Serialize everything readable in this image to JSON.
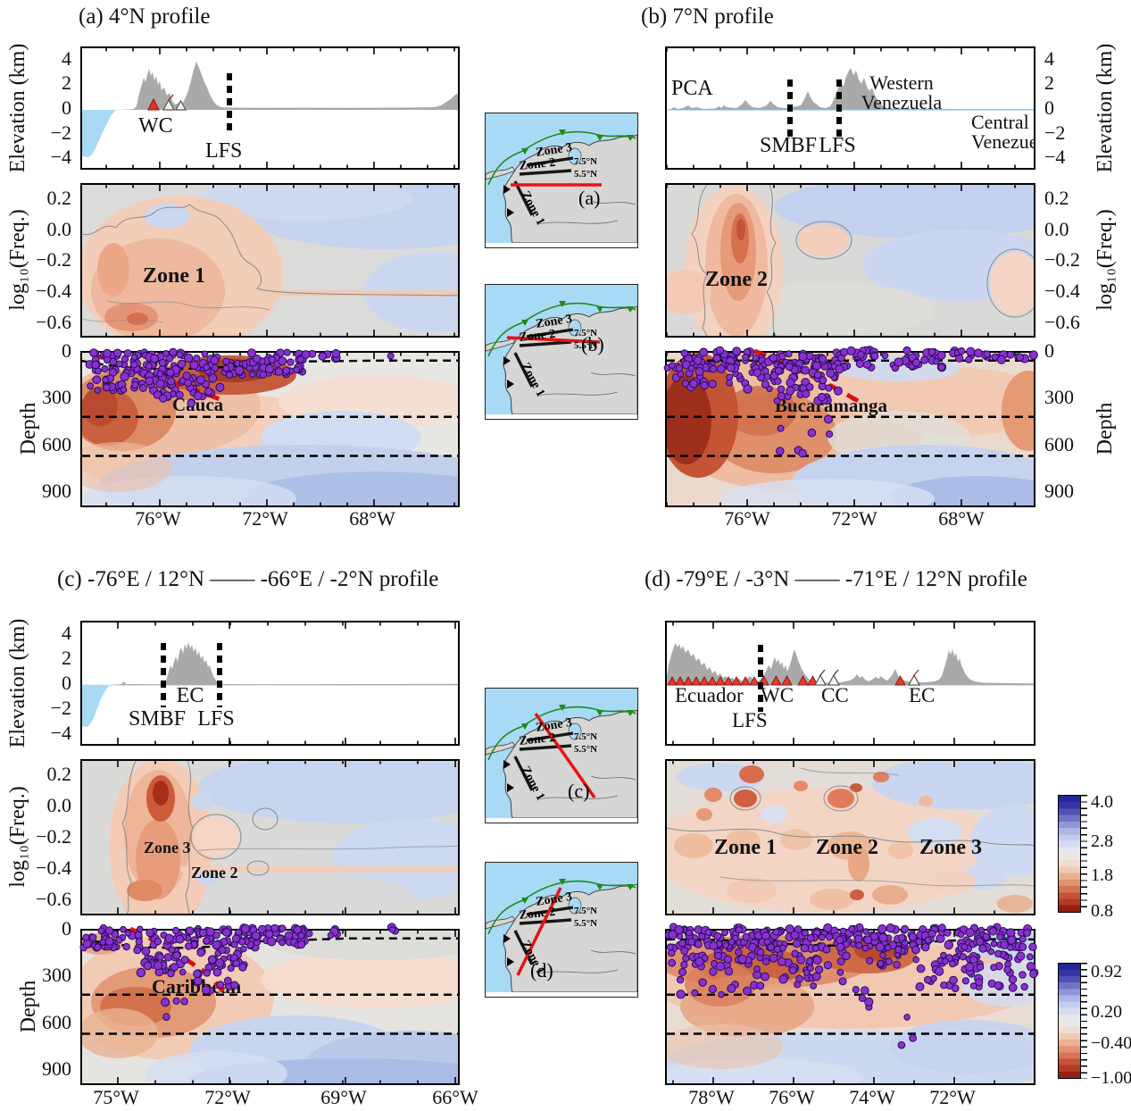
{
  "chart_data": {
    "type": "heatmap",
    "description": "Four seismic profile panels; each panel shows a topographic elevation profile, a log10(frequency) contour section and a mantle depth section with earthquake hypocenters (purple dots), dashed discontinuities near 50, 410 and 660 km, and red dashed slab lines. Center column shows four location inset maps; right side shows two vertical color scales.",
    "panels": [
      {
        "id": "a",
        "title": "(a) 4°N profile",
        "elevation": {
          "ylabel": "Elevation (km)",
          "ytick_labels": [
            "4",
            "2",
            "0",
            "−2",
            "−4"
          ],
          "yticks_km": [
            4,
            2,
            0,
            -2,
            -4
          ],
          "labels": {
            "wc": "WC",
            "lfs": "LFS"
          }
        },
        "freq": {
          "ylabel": "log₁₀(Freq.)",
          "ytick_labels": [
            "0.2",
            "0.0",
            "−0.2",
            "−0.4",
            "−0.6"
          ],
          "yticks": [
            0.2,
            0.0,
            -0.2,
            -0.4,
            -0.6
          ],
          "zones": [
            "Zone 1"
          ]
        },
        "depth": {
          "ylabel": "Depth",
          "ytick_labels": [
            "0",
            "300",
            "600",
            "900"
          ],
          "yticks_km": [
            0,
            300,
            600,
            900
          ],
          "dashed_depths_km": [
            50,
            410,
            660
          ],
          "annotations": [
            "Cauca"
          ],
          "xtick_labels": [
            "76°W",
            "72°W",
            "68°W"
          ]
        }
      },
      {
        "id": "b",
        "title": "(b) 7°N profile",
        "elevation": {
          "ylabel": "Elevation (km)",
          "ytick_labels": [
            "4",
            "2",
            "0",
            "−2",
            "−4"
          ],
          "yticks_km": [
            4,
            2,
            0,
            -2,
            -4
          ],
          "labels": {
            "pca": "PCA",
            "smbf": "SMBF",
            "lfs": "LFS",
            "western_1": "Western",
            "western_2": "Venezuela",
            "central_1": "Central",
            "central_2": "Venezuela"
          }
        },
        "freq": {
          "ylabel": "log₁₀(Freq.)",
          "ytick_labels": [
            "0.2",
            "0.0",
            "−0.2",
            "−0.4",
            "−0.6"
          ],
          "yticks": [
            0.2,
            0.0,
            -0.2,
            -0.4,
            -0.6
          ],
          "zones": [
            "Zone 2"
          ]
        },
        "depth": {
          "ylabel": "Depth",
          "ytick_labels": [
            "0",
            "300",
            "600",
            "900"
          ],
          "yticks_km": [
            0,
            300,
            600,
            900
          ],
          "dashed_depths_km": [
            50,
            410,
            660
          ],
          "annotations": [
            "Bucaramanga"
          ],
          "xtick_labels": [
            "76°W",
            "72°W",
            "68°W"
          ]
        }
      },
      {
        "id": "c",
        "title": "(c) -76°E / 12°N —— -66°E / -2°N profile",
        "elevation": {
          "ylabel": "Elevation (km)",
          "ytick_labels": [
            "4",
            "2",
            "0",
            "−2",
            "−4"
          ],
          "yticks_km": [
            4,
            2,
            0,
            -2,
            -4
          ],
          "labels": {
            "ec": "EC",
            "smbf": "SMBF",
            "lfs": "LFS"
          }
        },
        "freq": {
          "ylabel": "log₁₀(Freq.)",
          "ytick_labels": [
            "0.2",
            "0.0",
            "−0.2",
            "−0.4",
            "−0.6"
          ],
          "yticks": [
            0.2,
            0.0,
            -0.2,
            -0.4,
            -0.6
          ],
          "zones": [
            "Zone 3",
            "Zone 2"
          ]
        },
        "depth": {
          "ylabel": "Depth",
          "ytick_labels": [
            "0",
            "300",
            "600",
            "900"
          ],
          "yticks_km": [
            0,
            300,
            600,
            900
          ],
          "dashed_depths_km": [
            50,
            410,
            660
          ],
          "annotations": [
            "Caribbean"
          ],
          "xtick_labels": [
            "75°W",
            "72°W",
            "69°W",
            "66°W"
          ]
        }
      },
      {
        "id": "d",
        "title": "(d) -79°E / -3°N —— -71°E / 12°N profile",
        "elevation": {
          "labels": {
            "ecuador": "Ecuador",
            "wc": "WC",
            "cc": "CC",
            "ec": "EC",
            "lfs": "LFS"
          }
        },
        "freq": {
          "zones": [
            "Zone 1",
            "Zone 2",
            "Zone 3"
          ]
        },
        "depth": {
          "dashed_depths_km": [
            50,
            410,
            660
          ],
          "xtick_labels": [
            "78°W",
            "76°W",
            "74°W",
            "72°W"
          ]
        }
      }
    ],
    "insets": [
      {
        "label": "(a)",
        "zone_labels": [
          "Zone 1",
          "Zone 2",
          "Zone 3"
        ],
        "latitude_labels": [
          "7.5°N",
          "5.5°N"
        ],
        "profile": "E-W red line near 4°N"
      },
      {
        "label": "(b)",
        "zone_labels": [
          "Zone 1",
          "Zone 2",
          "Zone 3"
        ],
        "latitude_labels": [
          "7.5°N",
          "5.5°N"
        ],
        "profile": "E-W red line near 7°N"
      },
      {
        "label": "(c)",
        "zone_labels": [
          "Zone 1",
          "Zone 2",
          "Zone 3"
        ],
        "latitude_labels": [
          "7.5°N",
          "5.5°N"
        ],
        "profile": "NW-SE red diagonal line"
      },
      {
        "label": "(d)",
        "zone_labels": [
          "Zone 1",
          "Zone 2",
          "Zone 3"
        ],
        "latitude_labels": [
          "7.5°N",
          "5.5°N"
        ],
        "profile": "SW-NE red diagonal line"
      }
    ],
    "colorbars": [
      {
        "id": "upper",
        "tick_labels": [
          "4.0",
          "2.8",
          "1.8",
          "0.8"
        ],
        "ticks": [
          4.0,
          2.8,
          1.8,
          0.8
        ],
        "orientation": "vertical",
        "top": "blue",
        "bottom": "dark red"
      },
      {
        "id": "lower",
        "tick_labels": [
          "0.92",
          "0.20",
          "−0.40",
          "−1.00"
        ],
        "ticks": [
          0.92,
          0.2,
          -0.4,
          -1.0
        ],
        "orientation": "vertical",
        "top": "blue",
        "bottom": "dark red"
      }
    ]
  },
  "colors": {
    "ocean": "#a9daf5",
    "topography": "#a9a9a9",
    "hypocenter_fill": "#8b2fd0",
    "hypocenter_edge": "#241057",
    "slab_dashed_line": "#e01010",
    "profile_line": "#e81212",
    "subduction_front": "#1e8a1e",
    "colorbar_top": "#23239c",
    "colorbar_bottom": "#951f12"
  },
  "icons": {
    "volcano_active": "red triangle",
    "volcano_inactive": "white triangle",
    "subduction_teeth": "green triangles",
    "trench_teeth": "black triangles"
  }
}
